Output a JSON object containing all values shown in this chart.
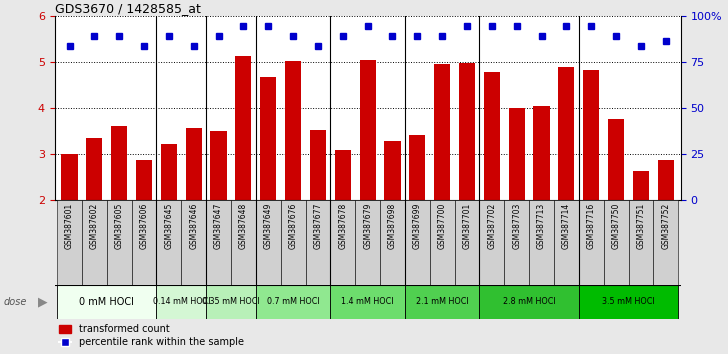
{
  "title": "GDS3670 / 1428585_at",
  "samples": [
    "GSM387601",
    "GSM387602",
    "GSM387605",
    "GSM387606",
    "GSM387645",
    "GSM387646",
    "GSM387647",
    "GSM387648",
    "GSM387649",
    "GSM387676",
    "GSM387677",
    "GSM387678",
    "GSM387679",
    "GSM387698",
    "GSM387699",
    "GSM387700",
    "GSM387701",
    "GSM387702",
    "GSM387703",
    "GSM387713",
    "GSM387714",
    "GSM387716",
    "GSM387750",
    "GSM387751",
    "GSM387752"
  ],
  "bar_values": [
    3.0,
    3.35,
    3.6,
    2.88,
    3.22,
    3.57,
    3.5,
    5.12,
    4.68,
    5.02,
    3.52,
    3.08,
    5.05,
    3.28,
    3.42,
    4.95,
    4.98,
    4.78,
    4.0,
    4.04,
    4.9,
    4.82,
    3.75,
    2.62,
    2.88
  ],
  "percentile_values": [
    5.34,
    5.56,
    5.56,
    5.34,
    5.56,
    5.34,
    5.56,
    5.78,
    5.78,
    5.56,
    5.34,
    5.56,
    5.78,
    5.56,
    5.56,
    5.56,
    5.78,
    5.78,
    5.78,
    5.56,
    5.78,
    5.78,
    5.56,
    5.34,
    5.46
  ],
  "dose_groups": [
    {
      "label": "0 mM HOCl",
      "start": 0,
      "end": 4,
      "color": "#f0fff0"
    },
    {
      "label": "0.14 mM HOCl",
      "start": 4,
      "end": 6,
      "color": "#d4f7d4"
    },
    {
      "label": "0.35 mM HOCl",
      "start": 6,
      "end": 8,
      "color": "#b8f0b8"
    },
    {
      "label": "0.7 mM HOCl",
      "start": 8,
      "end": 11,
      "color": "#90e890"
    },
    {
      "label": "1.4 mM HOCl",
      "start": 11,
      "end": 14,
      "color": "#6ddd6d"
    },
    {
      "label": "2.1 mM HOCl",
      "start": 14,
      "end": 17,
      "color": "#50d050"
    },
    {
      "label": "2.8 mM HOCl",
      "start": 17,
      "end": 21,
      "color": "#30c030"
    },
    {
      "label": "3.5 mM HOCl",
      "start": 21,
      "end": 25,
      "color": "#00bb00"
    }
  ],
  "bar_color": "#cc0000",
  "percentile_color": "#0000cc",
  "ylim_left": [
    2,
    6
  ],
  "ylim_right": [
    0,
    100
  ],
  "yticks_left": [
    2,
    3,
    4,
    5,
    6
  ],
  "yticks_right": [
    0,
    25,
    50,
    75,
    100
  ],
  "ytick_labels_right": [
    "0",
    "25",
    "50",
    "75",
    "100%"
  ],
  "legend_bar": "transformed count",
  "legend_pct": "percentile rank within the sample",
  "fig_bg": "#e8e8e8",
  "plot_bg": "#ffffff",
  "xtick_bg": "#d0d0d0"
}
